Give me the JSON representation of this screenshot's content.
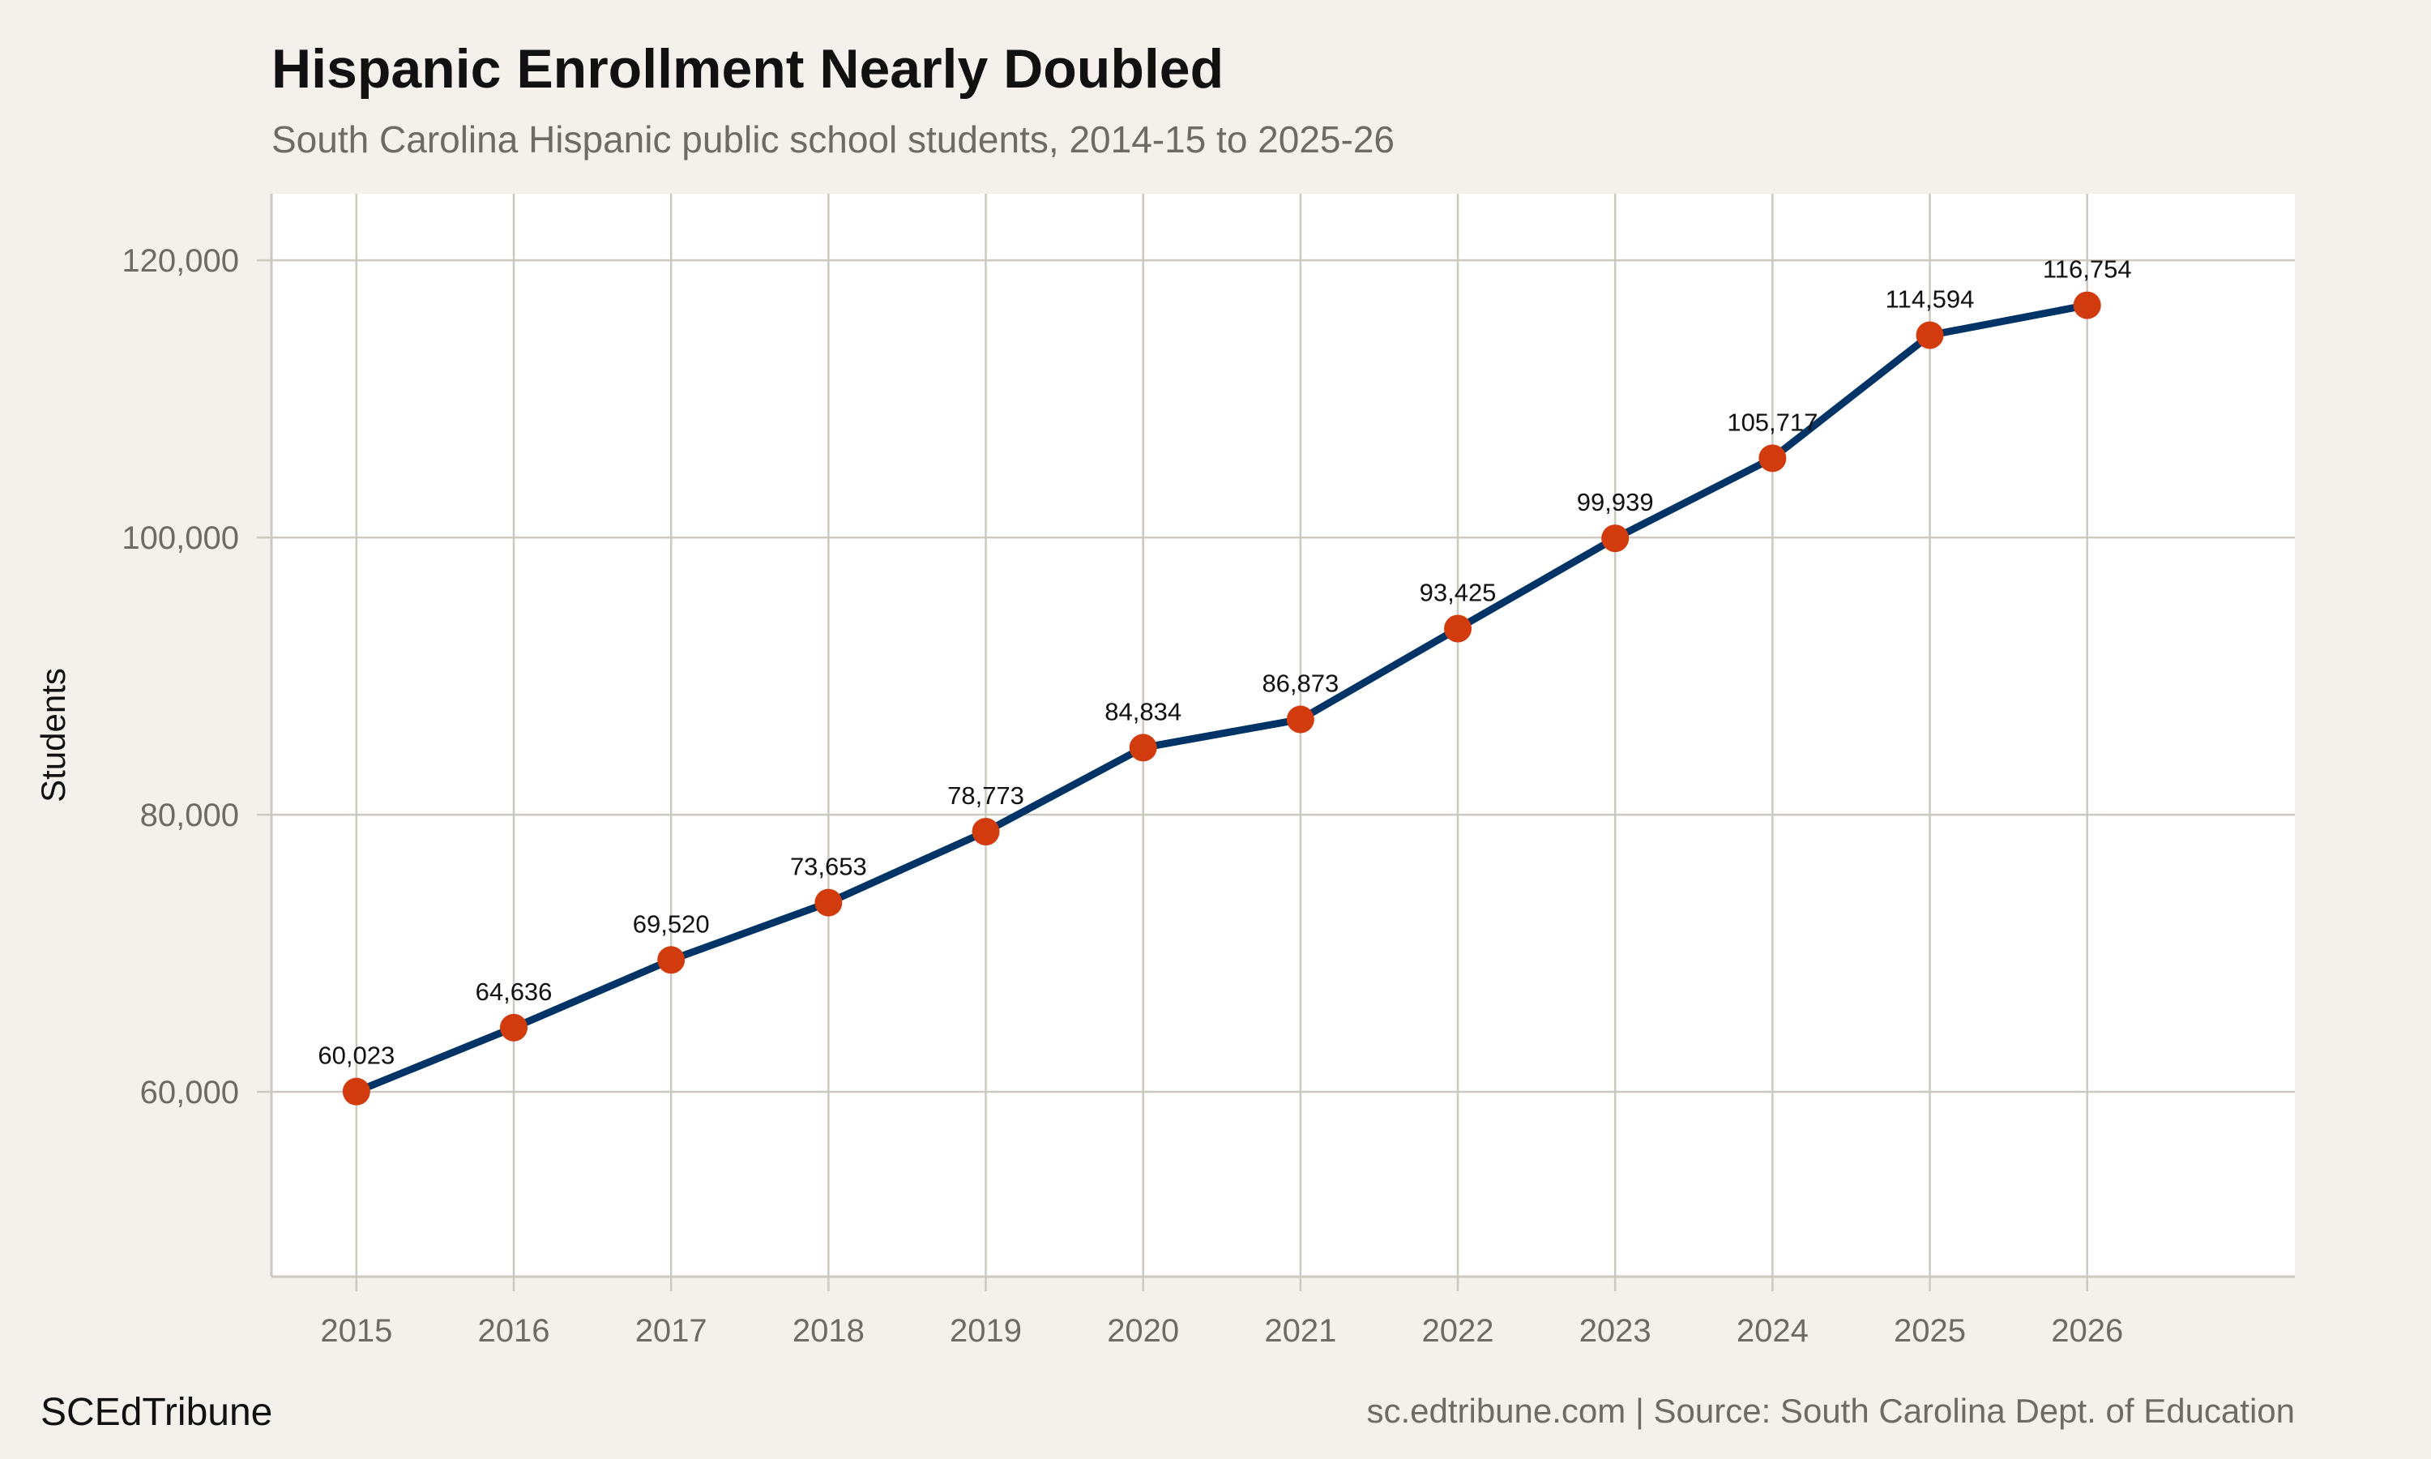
{
  "chart_data": {
    "type": "line",
    "title": "Hispanic Enrollment Nearly Doubled",
    "subtitle": "South Carolina Hispanic public school students, 2014-15 to 2025-26",
    "xlabel": "",
    "ylabel": "Students",
    "x": [
      2015,
      2016,
      2017,
      2018,
      2019,
      2020,
      2021,
      2022,
      2023,
      2024,
      2025,
      2026
    ],
    "values": [
      60023,
      64636,
      69520,
      73653,
      78773,
      84834,
      86873,
      93425,
      99939,
      105717,
      114594,
      116754
    ],
    "data_labels": [
      "60,023",
      "64,636",
      "69,520",
      "73,653",
      "78,773",
      "84,834",
      "86,873",
      "93,425",
      "99,939",
      "105,717",
      "114,594",
      "116,754"
    ],
    "x_ticks": [
      "2015",
      "2016",
      "2017",
      "2018",
      "2019",
      "2020",
      "2021",
      "2022",
      "2023",
      "2024",
      "2025",
      "2026"
    ],
    "y_ticks": [
      60000,
      80000,
      100000,
      120000
    ],
    "y_tick_labels": [
      "60,000",
      "80,000",
      "100,000",
      "120,000"
    ],
    "xlim": [
      2014.46,
      2027.32
    ],
    "ylim": [
      46670,
      124800
    ],
    "grid": true,
    "legend": "none",
    "colors": {
      "line": "#003366",
      "points": "#d13b0e",
      "background": "#f4f1ec",
      "panel": "#ffffff",
      "grid": "#cdc8c0"
    }
  },
  "footer": {
    "brand": "SCEdTribune",
    "source": "sc.edtribune.com | Source: South Carolina Dept. of Education"
  }
}
